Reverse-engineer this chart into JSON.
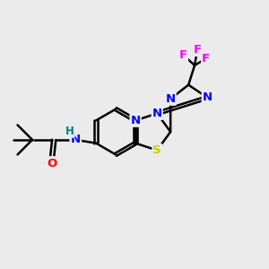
{
  "background_color": "#ebebeb",
  "bond_color": "#000000",
  "atom_colors": {
    "N": "#0000ff",
    "S": "#cccc00",
    "O": "#ff0000",
    "F": "#ff00ff",
    "H": "#008080",
    "C": "#000000"
  },
  "figsize": [
    3.0,
    3.0
  ],
  "dpi": 100
}
